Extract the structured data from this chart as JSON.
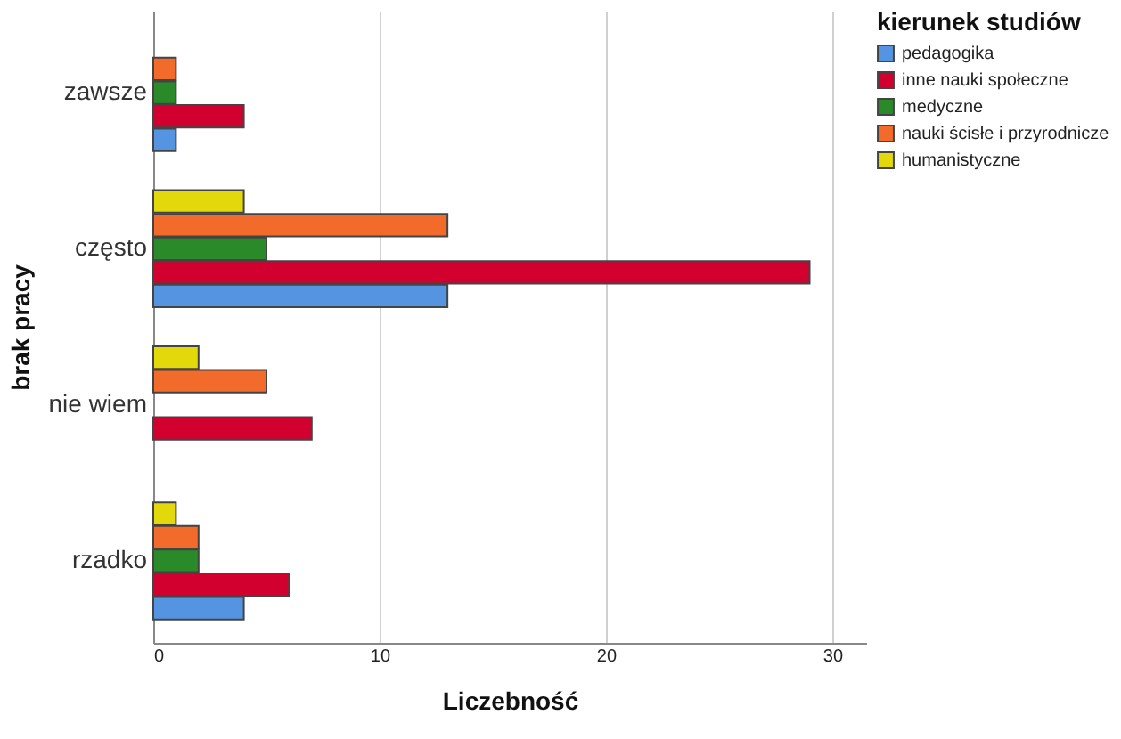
{
  "chart_data": {
    "type": "bar",
    "orientation": "horizontal",
    "xlabel": "Liczebność",
    "ylabel": "brak pracy",
    "legend_title": "kierunek studiów",
    "categories": [
      "zawsze",
      "często",
      "nie wiem",
      "rzadko"
    ],
    "series": [
      {
        "name": "pedagogika",
        "color": "#5594e0",
        "values": [
          1,
          13,
          null,
          4
        ]
      },
      {
        "name": "inne nauki społeczne",
        "color": "#d2002f",
        "values": [
          4,
          29,
          7,
          6
        ]
      },
      {
        "name": "medyczne",
        "color": "#2a8a2a",
        "values": [
          1,
          5,
          null,
          2
        ]
      },
      {
        "name": "nauki ścisłe i przyrodnicze",
        "color": "#f26b2a",
        "values": [
          1,
          13,
          5,
          2
        ]
      },
      {
        "name": "humanistyczne",
        "color": "#e2d80a",
        "values": [
          null,
          4,
          2,
          1
        ]
      }
    ],
    "xlim": [
      0,
      31.5
    ],
    "xticks": [
      0,
      10,
      20,
      30
    ],
    "grid": "x",
    "legend": "top right"
  }
}
